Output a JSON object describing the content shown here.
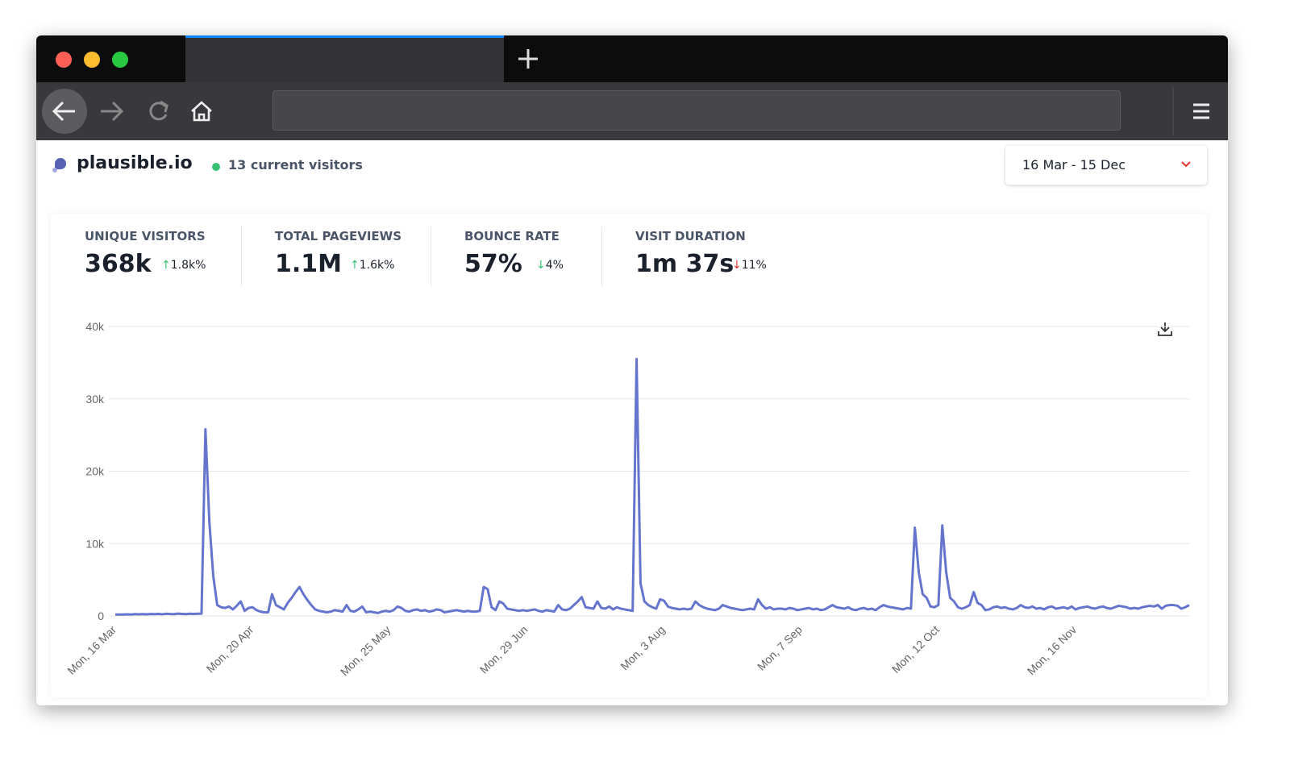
{
  "header": {
    "site": "plausible.io",
    "current_visitors": "13 current visitors",
    "date_range": "16 Mar - 15 Dec"
  },
  "stats": [
    {
      "label": "UNIQUE VISITORS",
      "value": "368k",
      "change": "1.8k%"
    },
    {
      "label": "TOTAL PAGEVIEWS",
      "value": "1.1M",
      "change": "1.6k%"
    },
    {
      "label": "BOUNCE RATE",
      "value": "57%",
      "change": "4%"
    },
    {
      "label": "VISIT DURATION",
      "value": "1m 37s",
      "change": "11%"
    }
  ],
  "chart_data": {
    "type": "line",
    "color": "#6574cd",
    "grid": true,
    "ylim": [
      0,
      40000
    ],
    "yticks": [
      0,
      {
        "value": 10000,
        "label": "10k"
      },
      {
        "value": 20000,
        "label": "20k"
      },
      {
        "value": 30000,
        "label": "30k"
      },
      {
        "value": 40000,
        "label": "40k"
      }
    ],
    "categories": [
      "Mon, 16 Mar",
      null,
      null,
      null,
      null,
      null,
      null,
      null,
      null,
      null,
      null,
      null,
      null,
      null,
      null,
      null,
      null,
      null,
      null,
      null,
      null,
      null,
      null,
      null,
      null,
      null,
      null,
      null,
      null,
      null,
      null,
      null,
      null,
      null,
      null,
      "Mon, 20 Apr",
      null,
      null,
      null,
      null,
      null,
      null,
      null,
      null,
      null,
      null,
      null,
      null,
      null,
      null,
      null,
      null,
      null,
      null,
      null,
      null,
      null,
      null,
      null,
      null,
      null,
      null,
      null,
      null,
      null,
      null,
      null,
      null,
      null,
      null,
      "Mon, 25 May",
      null,
      null,
      null,
      null,
      null,
      null,
      null,
      null,
      null,
      null,
      null,
      null,
      null,
      null,
      null,
      null,
      null,
      null,
      null,
      null,
      null,
      null,
      null,
      null,
      null,
      null,
      null,
      null,
      null,
      null,
      null,
      null,
      null,
      null,
      "Mon, 29 Jun",
      null,
      null,
      null,
      null,
      null,
      null,
      null,
      null,
      null,
      null,
      null,
      null,
      null,
      null,
      null,
      null,
      null,
      null,
      null,
      null,
      null,
      null,
      null,
      null,
      null,
      null,
      null,
      null,
      null,
      null,
      null,
      null,
      null,
      null,
      "Mon, 3 Aug",
      null,
      null,
      null,
      null,
      null,
      null,
      null,
      null,
      null,
      null,
      null,
      null,
      null,
      null,
      null,
      null,
      null,
      null,
      null,
      null,
      null,
      null,
      null,
      null,
      null,
      null,
      null,
      null,
      null,
      null,
      null,
      null,
      null,
      null,
      "Mon, 7 Sep",
      null,
      null,
      null,
      null,
      null,
      null,
      null,
      null,
      null,
      null,
      null,
      null,
      null,
      null,
      null,
      null,
      null,
      null,
      null,
      null,
      null,
      null,
      null,
      null,
      null,
      null,
      null,
      null,
      null,
      null,
      null,
      null,
      null,
      null,
      "Mon, 12 Oct",
      null,
      null,
      null,
      null,
      null,
      null,
      null,
      null,
      null,
      null,
      null,
      null,
      null,
      null,
      null,
      null,
      null,
      null,
      null,
      null,
      null,
      null,
      null,
      null,
      null,
      null,
      null,
      null,
      null,
      null,
      null,
      null,
      null,
      null,
      "Mon, 16 Nov",
      null,
      null,
      null,
      null,
      null,
      null,
      null,
      null,
      null,
      null,
      null,
      null,
      null,
      null,
      null,
      null,
      null,
      null,
      null,
      null,
      null,
      null,
      null,
      null,
      null,
      null,
      null,
      null,
      null
    ],
    "values": [
      200,
      200,
      200,
      220,
      200,
      250,
      230,
      250,
      220,
      260,
      250,
      280,
      230,
      300,
      260,
      250,
      320,
      280,
      250,
      300,
      280,
      300,
      320,
      25800,
      13000,
      5500,
      1500,
      1200,
      1100,
      1300,
      900,
      1400,
      2000,
      700,
      1100,
      1200,
      800,
      600,
      500,
      500,
      3000,
      1500,
      1200,
      900,
      1800,
      2500,
      3300,
      4000,
      3000,
      2200,
      1500,
      900,
      700,
      600,
      500,
      600,
      800,
      700,
      600,
      1500,
      700,
      600,
      900,
      1300,
      500,
      600,
      500,
      400,
      600,
      700,
      600,
      800,
      1300,
      1100,
      700,
      600,
      800,
      900,
      700,
      800,
      600,
      700,
      900,
      800,
      500,
      600,
      700,
      800,
      700,
      600,
      700,
      600,
      600,
      700,
      4000,
      3700,
      1200,
      800,
      2000,
      1700,
      1000,
      900,
      800,
      700,
      800,
      700,
      800,
      900,
      700,
      600,
      800,
      700,
      600,
      1500,
      900,
      800,
      1000,
      1500,
      2000,
      2600,
      1200,
      1100,
      1000,
      2000,
      1100,
      1000,
      1300,
      900,
      1200,
      1000,
      900,
      800,
      700,
      35500,
      4500,
      2000,
      1500,
      1200,
      1000,
      2300,
      2100,
      1300,
      1100,
      1000,
      900,
      1000,
      900,
      1000,
      2000,
      1500,
      1200,
      1000,
      900,
      800,
      1000,
      1500,
      1300,
      1100,
      1000,
      900,
      800,
      900,
      1000,
      900,
      2300,
      1500,
      1000,
      1200,
      900,
      1000,
      1000,
      900,
      1100,
      1000,
      800,
      900,
      1000,
      1100,
      900,
      1000,
      800,
      900,
      1200,
      1500,
      1200,
      1100,
      1000,
      1200,
      900,
      800,
      1000,
      1100,
      900,
      1000,
      800,
      1200,
      1500,
      1300,
      1200,
      1100,
      1000,
      900,
      1100,
      1000,
      12200,
      6000,
      3000,
      2500,
      1300,
      1200,
      1500,
      12500,
      6000,
      2500,
      2000,
      1200,
      1000,
      1200,
      1500,
      3300,
      1800,
      1500,
      800,
      900,
      1200,
      1300,
      1100,
      1200,
      1000,
      900,
      1100,
      1500,
      1200,
      1100,
      1300,
      1000,
      1100,
      900,
      1200,
      1300,
      1000,
      1100,
      1200,
      1000,
      1300,
      900,
      1100,
      1200,
      1300,
      1100,
      1000,
      1200,
      1300,
      1100,
      1000,
      1200,
      1400,
      1300,
      1200,
      1000,
      1100,
      1000,
      1200,
      1300,
      1400,
      1300,
      1500,
      1000,
      1400,
      1500,
      1500,
      1400,
      1000,
      1200,
      1500
    ]
  }
}
